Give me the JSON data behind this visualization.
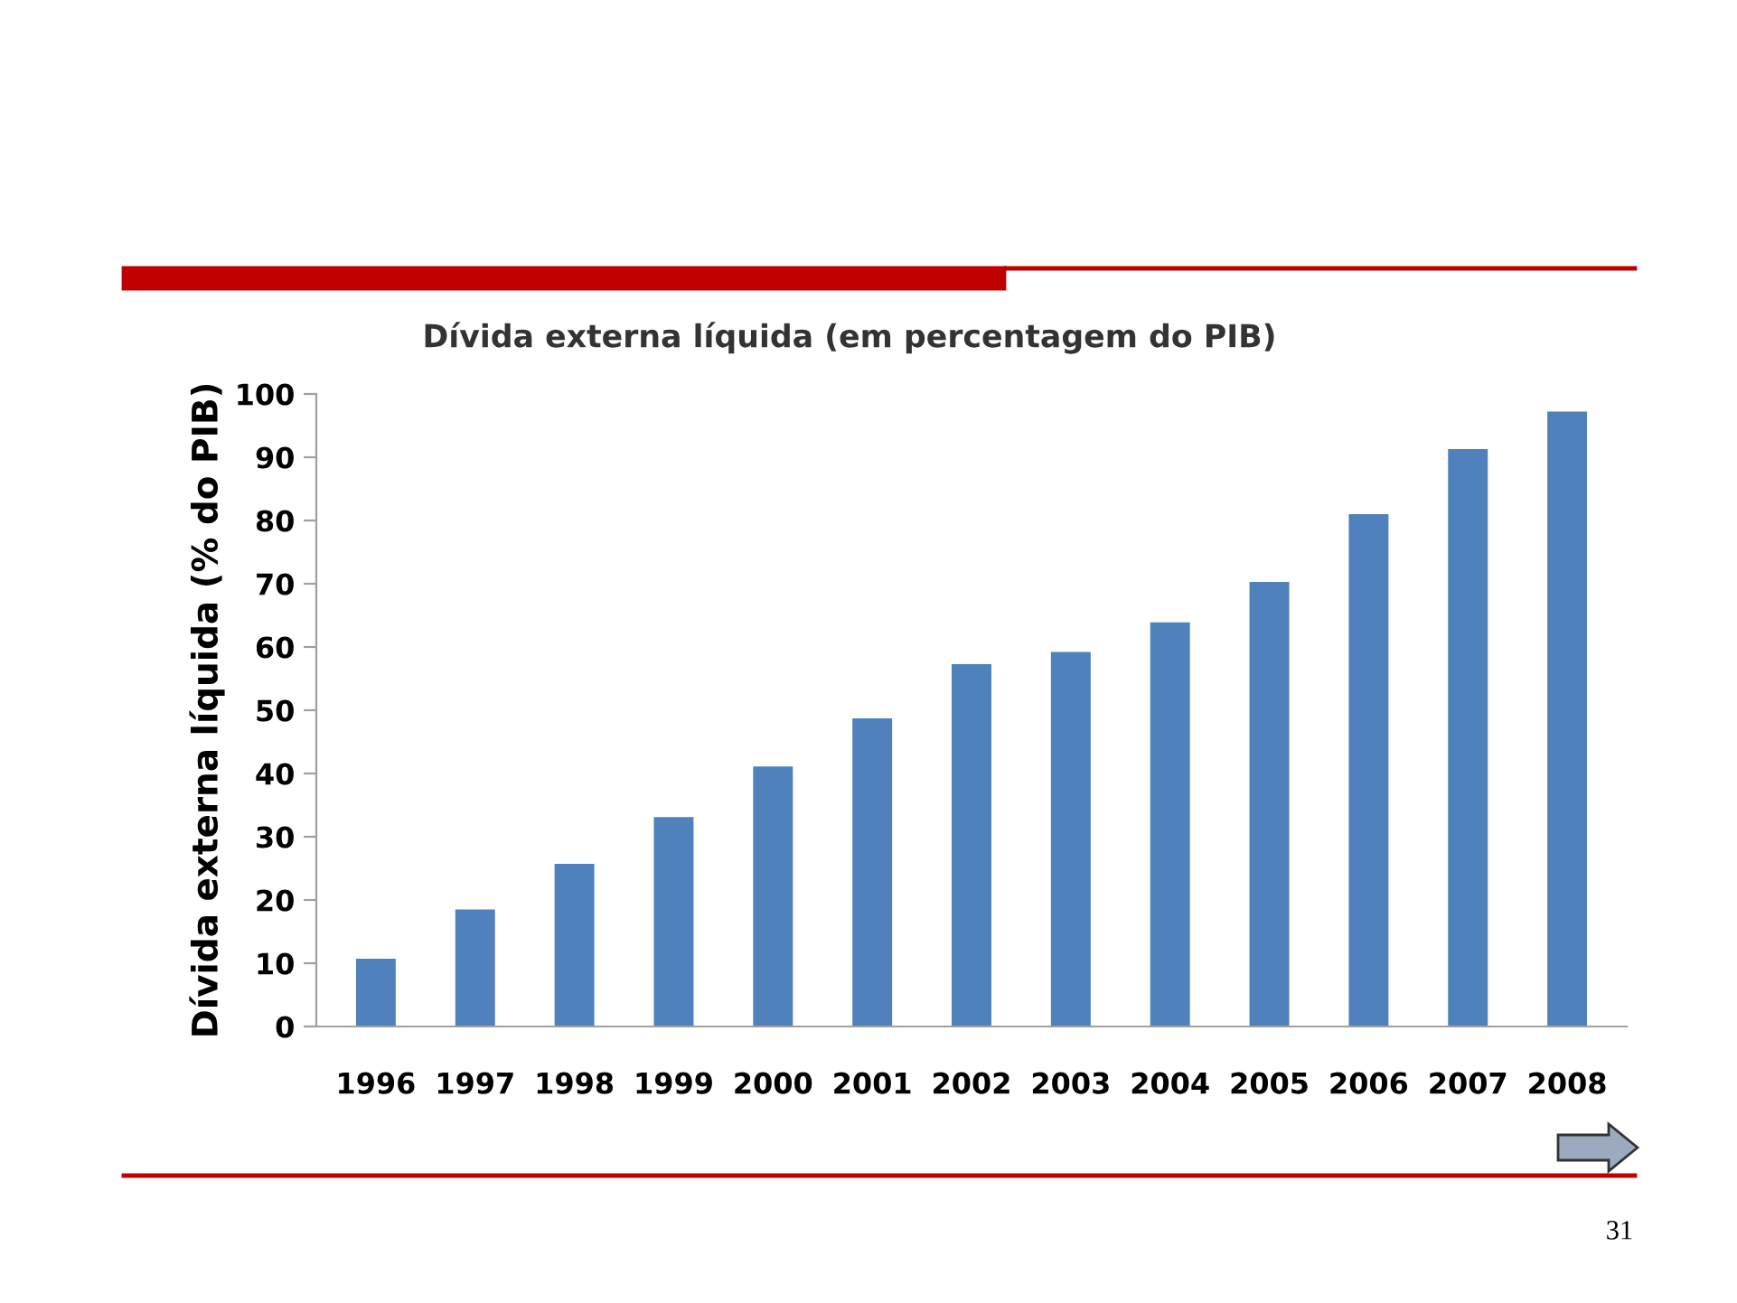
{
  "chart_data": {
    "type": "bar",
    "title": "Dívida externa líquida (em percentagem do PIB)",
    "ylabel": "Dívida externa líquida (% do PIB)",
    "categories": [
      "1996",
      "1997",
      "1998",
      "1999",
      "2000",
      "2001",
      "2002",
      "2003",
      "2004",
      "2005",
      "2006",
      "2007",
      "2008"
    ],
    "values": [
      10.7,
      18.5,
      25.7,
      33.1,
      41.1,
      48.7,
      57.3,
      59.2,
      63.9,
      70.3,
      81.0,
      91.3,
      97.2
    ],
    "color": "#4f81bd",
    "ylim": [
      0,
      100
    ],
    "yticks": [
      0,
      10,
      20,
      30,
      40,
      50,
      60,
      70,
      80,
      90,
      100
    ],
    "grid": false,
    "annotations": [
      "31"
    ]
  }
}
